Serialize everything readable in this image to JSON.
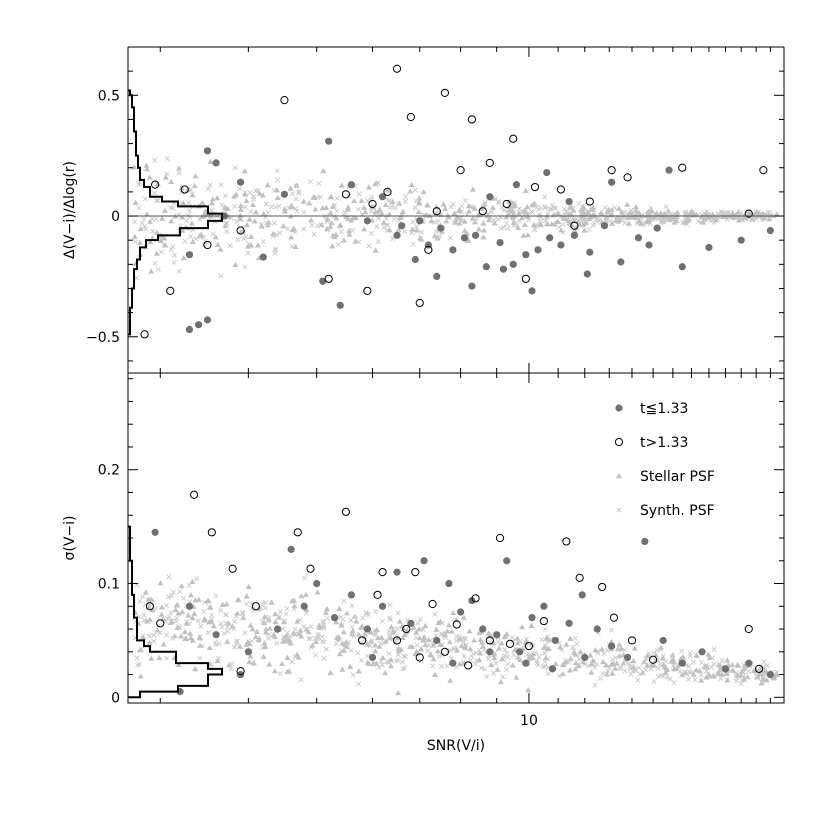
{
  "chart_data": [
    {
      "type": "scatter",
      "panel": "top",
      "xlabel": "",
      "ylabel": "Δ(V−i)/Δlog(r)",
      "xscale": "log",
      "xlim": [
        2.7,
        23
      ],
      "ylim": [
        -0.65,
        0.7
      ],
      "yticks": [
        -0.5,
        0,
        0.5
      ],
      "ytick_labels": [
        "−0.5",
        "0",
        "0.5"
      ],
      "reference_line_y": 0,
      "series": [
        {
          "name": "t≦1.33",
          "marker": "filled-circle",
          "color": "#707070",
          "points": [
            [
              3.3,
              -0.16
            ],
            [
              3.5,
              0.27
            ],
            [
              3.6,
              0.22
            ],
            [
              3.3,
              -0.47
            ],
            [
              3.4,
              -0.45
            ],
            [
              3.5,
              -0.43
            ],
            [
              3.7,
              0.0
            ],
            [
              3.9,
              0.14
            ],
            [
              4.2,
              -0.17
            ],
            [
              4.5,
              0.09
            ],
            [
              5.1,
              -0.27
            ],
            [
              5.2,
              0.31
            ],
            [
              5.4,
              -0.37
            ],
            [
              5.6,
              0.13
            ],
            [
              5.9,
              -0.02
            ],
            [
              6.2,
              0.08
            ],
            [
              6.6,
              -0.04
            ],
            [
              6.9,
              -0.18
            ],
            [
              7.2,
              -0.12
            ],
            [
              7.5,
              -0.05
            ],
            [
              7.8,
              -0.14
            ],
            [
              8.1,
              -0.09
            ],
            [
              8.4,
              -0.08
            ],
            [
              8.7,
              -0.21
            ],
            [
              9.1,
              -0.11
            ],
            [
              9.5,
              -0.2
            ],
            [
              9.9,
              -0.16
            ],
            [
              10.3,
              -0.14
            ],
            [
              10.7,
              -0.09
            ],
            [
              11.1,
              -0.12
            ],
            [
              11.6,
              -0.08
            ],
            [
              12.2,
              -0.15
            ],
            [
              12.8,
              -0.04
            ],
            [
              13.5,
              -0.19
            ],
            [
              14.3,
              -0.09
            ],
            [
              15.2,
              -0.05
            ],
            [
              16.5,
              -0.21
            ],
            [
              18,
              -0.13
            ],
            [
              20,
              -0.1
            ],
            [
              22,
              -0.06
            ],
            [
              8.8,
              0.08
            ],
            [
              9.6,
              0.13
            ],
            [
              10.6,
              0.18
            ],
            [
              11.4,
              0.06
            ],
            [
              13.1,
              0.14
            ],
            [
              15.8,
              0.19
            ],
            [
              7.4,
              -0.25
            ],
            [
              8.3,
              -0.29
            ],
            [
              9.2,
              -0.22
            ],
            [
              10.1,
              -0.31
            ],
            [
              12.1,
              -0.24
            ],
            [
              14.8,
              -0.12
            ],
            [
              6.5,
              -0.08
            ],
            [
              7.0,
              -0.02
            ]
          ]
        },
        {
          "name": "t>1.33",
          "marker": "open-circle",
          "color": "#000000",
          "points": [
            [
              2.95,
              0.13
            ],
            [
              2.85,
              -0.49
            ],
            [
              3.1,
              -0.31
            ],
            [
              3.25,
              0.11
            ],
            [
              3.5,
              -0.12
            ],
            [
              3.9,
              -0.06
            ],
            [
              4.5,
              0.48
            ],
            [
              5.2,
              -0.26
            ],
            [
              5.5,
              0.09
            ],
            [
              5.9,
              -0.31
            ],
            [
              6.3,
              0.1
            ],
            [
              6.5,
              0.61
            ],
            [
              6.8,
              0.41
            ],
            [
              7.0,
              -0.36
            ],
            [
              7.2,
              -0.14
            ],
            [
              7.6,
              0.51
            ],
            [
              8.0,
              0.19
            ],
            [
              8.3,
              0.4
            ],
            [
              8.8,
              0.22
            ],
            [
              9.3,
              0.05
            ],
            [
              9.5,
              0.32
            ],
            [
              9.9,
              -0.26
            ],
            [
              10.2,
              0.12
            ],
            [
              11.1,
              0.11
            ],
            [
              12.2,
              0.06
            ],
            [
              13.1,
              0.19
            ],
            [
              13.8,
              0.16
            ],
            [
              16.5,
              0.2
            ],
            [
              20.5,
              0.01
            ],
            [
              21.5,
              0.19
            ],
            [
              6.0,
              0.05
            ],
            [
              7.4,
              0.02
            ],
            [
              8.6,
              0.02
            ],
            [
              11.6,
              -0.04
            ]
          ]
        },
        {
          "name": "Stellar PSF",
          "marker": "filled-triangle",
          "color": "#c0c0c0"
        },
        {
          "name": "Synth. PSF",
          "marker": "cross",
          "color": "#c8c8c8"
        }
      ]
    },
    {
      "type": "scatter",
      "panel": "bottom",
      "xlabel": "SNR(V/i)",
      "ylabel": "σ(V−i)",
      "xscale": "log",
      "xlim": [
        2.7,
        23
      ],
      "xticks": [
        10
      ],
      "xtick_labels": [
        "10"
      ],
      "ylim": [
        -0.005,
        0.285
      ],
      "yticks": [
        0,
        0.1,
        0.2
      ],
      "ytick_labels": [
        "0",
        "0.1",
        "0.2"
      ],
      "series": [
        {
          "name": "t≦1.33",
          "marker": "filled-circle",
          "color": "#707070",
          "points": [
            [
              2.95,
              0.145
            ],
            [
              3.2,
              0.005
            ],
            [
              3.3,
              0.08
            ],
            [
              3.6,
              0.055
            ],
            [
              3.9,
              0.02
            ],
            [
              4.0,
              0.04
            ],
            [
              4.4,
              0.06
            ],
            [
              4.6,
              0.13
            ],
            [
              4.8,
              0.08
            ],
            [
              5.0,
              0.1
            ],
            [
              5.3,
              0.07
            ],
            [
              5.6,
              0.09
            ],
            [
              5.9,
              0.06
            ],
            [
              6.2,
              0.08
            ],
            [
              6.5,
              0.11
            ],
            [
              6.8,
              0.065
            ],
            [
              7.1,
              0.12
            ],
            [
              7.4,
              0.05
            ],
            [
              7.7,
              0.1
            ],
            [
              8.0,
              0.075
            ],
            [
              8.3,
              0.085
            ],
            [
              8.6,
              0.06
            ],
            [
              9.0,
              0.055
            ],
            [
              9.3,
              0.12
            ],
            [
              9.7,
              0.04
            ],
            [
              10.1,
              0.07
            ],
            [
              10.5,
              0.08
            ],
            [
              10.9,
              0.05
            ],
            [
              11.4,
              0.065
            ],
            [
              11.9,
              0.09
            ],
            [
              12.5,
              0.06
            ],
            [
              13.1,
              0.045
            ],
            [
              13.8,
              0.035
            ],
            [
              14.6,
              0.137
            ],
            [
              15.5,
              0.05
            ],
            [
              16.5,
              0.03
            ],
            [
              17.6,
              0.04
            ],
            [
              19,
              0.025
            ],
            [
              20.5,
              0.03
            ],
            [
              22,
              0.02
            ],
            [
              6.0,
              0.035
            ],
            [
              7.8,
              0.03
            ],
            [
              8.8,
              0.04
            ],
            [
              9.9,
              0.03
            ],
            [
              10.8,
              0.025
            ],
            [
              12.0,
              0.035
            ]
          ]
        },
        {
          "name": "t>1.33",
          "marker": "open-circle",
          "color": "#000000",
          "points": [
            [
              2.9,
              0.08
            ],
            [
              3.0,
              0.065
            ],
            [
              3.35,
              0.178
            ],
            [
              3.55,
              0.145
            ],
            [
              3.8,
              0.113
            ],
            [
              3.9,
              0.023
            ],
            [
              4.1,
              0.08
            ],
            [
              4.7,
              0.145
            ],
            [
              4.9,
              0.113
            ],
            [
              5.5,
              0.163
            ],
            [
              5.8,
              0.05
            ],
            [
              6.1,
              0.09
            ],
            [
              6.2,
              0.11
            ],
            [
              6.5,
              0.05
            ],
            [
              6.9,
              0.11
            ],
            [
              7.0,
              0.035
            ],
            [
              7.3,
              0.082
            ],
            [
              7.6,
              0.04
            ],
            [
              7.9,
              0.064
            ],
            [
              8.4,
              0.087
            ],
            [
              8.8,
              0.05
            ],
            [
              9.1,
              0.14
            ],
            [
              9.4,
              0.047
            ],
            [
              10.0,
              0.045
            ],
            [
              10.5,
              0.067
            ],
            [
              11.3,
              0.137
            ],
            [
              11.8,
              0.105
            ],
            [
              12.7,
              0.097
            ],
            [
              13.2,
              0.07
            ],
            [
              14.0,
              0.05
            ],
            [
              15.0,
              0.033
            ],
            [
              20.5,
              0.06
            ],
            [
              21.2,
              0.025
            ],
            [
              6.7,
              0.06
            ],
            [
              8.2,
              0.028
            ]
          ]
        },
        {
          "name": "Stellar PSF",
          "marker": "filled-triangle",
          "color": "#c0c0c0"
        },
        {
          "name": "Synth. PSF",
          "marker": "cross",
          "color": "#c8c8c8"
        }
      ]
    }
  ],
  "legend_labels": [
    "t≦1.33",
    "t>1.33",
    "Stellar PSF",
    "Synth. PSF"
  ]
}
